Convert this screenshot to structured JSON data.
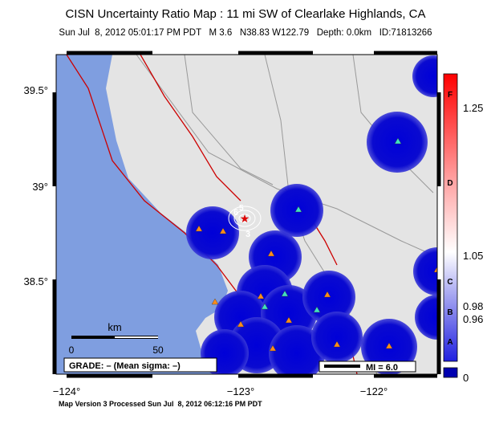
{
  "header": {
    "title": "CISN Uncertainty Ratio Map : 11 mi SW of Clearlake Highlands, CA",
    "subtitle": "Sun Jul  8, 2012 05:01:17 PM PDT   M 3.6   N38.83 W122.79   Depth: 0.0km   ID:71813266"
  },
  "map": {
    "lat_labels": [
      "39.5°",
      "39°",
      "38.5°"
    ],
    "lon_labels": [
      "−124°",
      "−123°",
      "−122°"
    ],
    "contour_labels": [
      "6",
      "5",
      "3"
    ],
    "scale": {
      "unit": "km",
      "start": "0",
      "end": "50"
    },
    "grade": "GRADE: – (Mean sigma: –)",
    "intensity_legend": "MI = 6.0"
  },
  "colorbar": {
    "grades": [
      "F",
      "D",
      "C",
      "B",
      "A"
    ],
    "ticks": [
      "1.25",
      "1.05",
      "0.98",
      "0.96",
      "0"
    ]
  },
  "footer": "Map Version 3 Processed Sun Jul  8, 2012 06:12:16 PM PDT"
}
